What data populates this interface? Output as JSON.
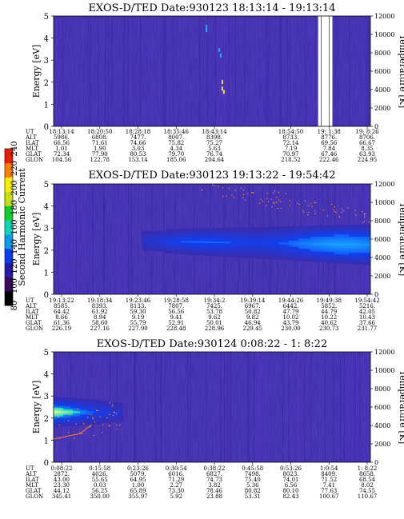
{
  "colorbar": {
    "label": "Second Harmonic Current",
    "ticks": [
      "240",
      "220",
      "200",
      "180",
      "160",
      "140",
      "120",
      "100",
      "80"
    ],
    "colors": [
      "#000000",
      "#3a0a60",
      "#2a1aa8",
      "#0a3cf0",
      "#0a9ce8",
      "#10d8b8",
      "#10d030",
      "#c8e010",
      "#f8f000",
      "#ff8000",
      "#e82000"
    ]
  },
  "chart_data": [
    {
      "type": "heatmap",
      "title": "EXOS-D/TED   Date:930123   18:13:14 - 19:13:14",
      "ylabel": "Energy [eV]",
      "y2label": "Temperature [K]",
      "ylim": [
        0,
        5
      ],
      "y2lim": [
        0,
        12000
      ],
      "yticks": [
        "0",
        "1",
        "2",
        "3",
        "4",
        "5"
      ],
      "y2ticks": [
        "0",
        "2000",
        "4000",
        "6000",
        "8000",
        "10000",
        "12000"
      ],
      "data_gap": [
        0.835,
        0.88
      ],
      "emission_band": null,
      "table": {
        "row_labels": [
          "UT",
          "ALT",
          "ILAT",
          "MLT",
          "GLAT",
          "GLON"
        ],
        "columns": [
          [
            "18:13:14",
            "5986.",
            "66.56",
            "1.01",
            "72.34",
            "104.56"
          ],
          [
            "18:20:50",
            "6808.",
            "71.61",
            "1.90",
            "77.90",
            "122.78"
          ],
          [
            "18:28:18",
            "7477.",
            "74.66",
            "3.03",
            "80.53",
            "153.14"
          ],
          [
            "18:35:46",
            "8007.",
            "75.82",
            "4.34",
            "79.70",
            "185.06"
          ],
          [
            "18:43:14",
            "8398.",
            "75.27",
            "5.63",
            "76.74",
            "204.64"
          ],
          [
            "",
            "",
            "",
            "",
            "",
            ""
          ],
          [
            "18:54:50",
            "8733.",
            "72.14",
            "7.19",
            "70.97",
            "218.52"
          ],
          [
            "19: 1:38",
            "8776.",
            "69.56",
            "7.84",
            "67.46",
            "222.46"
          ],
          [
            "19: 8:26",
            "8706.",
            "66.67",
            "8.35",
            "63.93",
            "224.95"
          ]
        ]
      }
    },
    {
      "type": "heatmap",
      "title": "EXOS-D/TED   Date:930123   19:13:22 - 19:54:42",
      "ylabel": "Energy [eV]",
      "y2label": "Temperature [K]",
      "ylim": [
        0,
        5
      ],
      "y2lim": [
        0,
        12000
      ],
      "yticks": [
        "0",
        "1",
        "2",
        "3",
        "4",
        "5"
      ],
      "y2ticks": [
        "0",
        "2000",
        "4000",
        "6000",
        "8000",
        "10000",
        "12000"
      ],
      "data_gap": null,
      "emission_band": {
        "x": [
          0.28,
          1.0
        ],
        "center": 2.4,
        "halfwidth": 0.55
      },
      "table": {
        "row_labels": [
          "UT",
          "ALT",
          "ILAT",
          "MLT",
          "GLAT",
          "GLON"
        ],
        "columns": [
          [
            "19:13:22",
            "8585.",
            "64.42",
            "8.66",
            "61.36",
            "226.19"
          ],
          [
            "19:18:34",
            "8393.",
            "61.92",
            "8.94",
            "58.60",
            "227.16"
          ],
          [
            "19:23:46",
            "8133.",
            "59.30",
            "9.19",
            "55.79",
            "227.90"
          ],
          [
            "19:28:58",
            "7807.",
            "56.56",
            "9.41",
            "52.91",
            "228.48"
          ],
          [
            "19:34:2",
            "7425.",
            "53.78",
            "9.62",
            "50.01",
            "228.96"
          ],
          [
            "19:39:14",
            "6967.",
            "50.82",
            "9.82",
            "46.94",
            "229.45"
          ],
          [
            "19:44:26",
            "6442.",
            "47.79",
            "10.02",
            "43.79",
            "230.00"
          ],
          [
            "19:49:38",
            "5852.",
            "44.79",
            "10.22",
            "40.62",
            "230.73"
          ],
          [
            "19:54:42",
            "5216.",
            "42.05",
            "10.43",
            "37.66",
            "231.77"
          ]
        ]
      }
    },
    {
      "type": "heatmap",
      "title": "EXOS-D/TED   Date:930124   0:08:22 - 1: 8:22",
      "ylabel": "Energy [eV]",
      "y2label": "Temperature [K]",
      "ylim": [
        0,
        5
      ],
      "y2lim": [
        0,
        12000
      ],
      "yticks": [
        "0",
        "1",
        "2",
        "3",
        "4",
        "5"
      ],
      "y2ticks": [
        "0",
        "2000",
        "4000",
        "6000",
        "8000",
        "10000",
        "12000"
      ],
      "data_gap": null,
      "emission_band": {
        "x": [
          0.0,
          0.22
        ],
        "center": 2.25,
        "halfwidth": 0.45
      },
      "table": {
        "row_labels": [
          "UT",
          "ALT",
          "ILAT",
          "MLT",
          "GLAT",
          "GLON"
        ],
        "columns": [
          [
            "0:08:22",
            "2872.",
            "43.00",
            "23.30",
            "44.12",
            "345.41"
          ],
          [
            "0:15:58",
            "4026.",
            "55.65",
            "0.03",
            "56.25",
            "350.00"
          ],
          [
            "0:23:26",
            "5079.",
            "64.95",
            "1.00",
            "65.89",
            "355.97"
          ],
          [
            "0:30:54",
            "6016.",
            "71.29",
            "2.27",
            "73.30",
            "5.92"
          ],
          [
            "0:38:22",
            "6827.",
            "74.73",
            "3.82",
            "78.46",
            "23.88"
          ],
          [
            "0:45:58",
            "7498.",
            "75.40",
            "5.36",
            "80.82",
            "53.31"
          ],
          [
            "0:53:26",
            "8023.",
            "74.01",
            "6.56",
            "80.10",
            "82.43"
          ],
          [
            "1:0:54",
            "8409.",
            "71.52",
            "7.41",
            "77.63",
            "100.67"
          ],
          [
            "1: 8:22",
            "8658.",
            "68.54",
            "8.02",
            "74.55",
            "110.67"
          ]
        ]
      }
    }
  ]
}
